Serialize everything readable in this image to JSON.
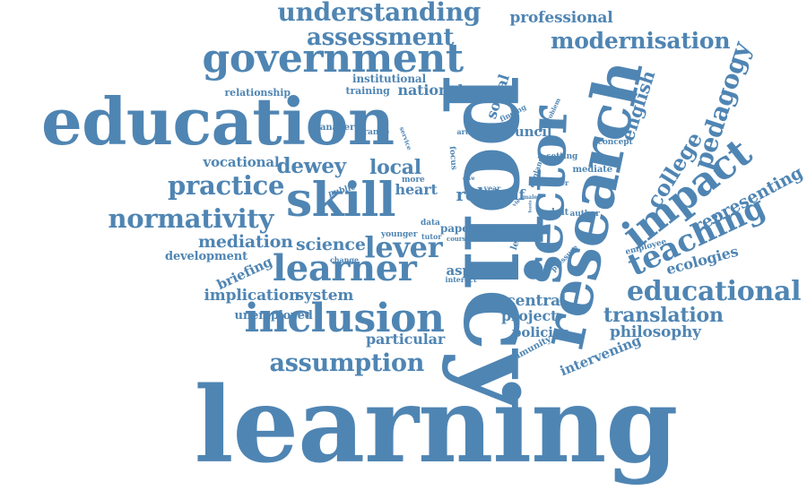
{
  "cloud": {
    "color": "#4f85b3",
    "words": [
      {
        "text": "learning",
        "weight": 100
      },
      {
        "text": "policy",
        "weight": 82
      },
      {
        "text": "education",
        "weight": 68
      },
      {
        "text": "research",
        "weight": 58
      },
      {
        "text": "sector",
        "weight": 48
      },
      {
        "text": "skill",
        "weight": 44
      },
      {
        "text": "inclusion",
        "weight": 40
      },
      {
        "text": "government",
        "weight": 38
      },
      {
        "text": "learner",
        "weight": 34
      },
      {
        "text": "teaching",
        "weight": 32
      },
      {
        "text": "educational",
        "weight": 30
      },
      {
        "text": "impact",
        "weight": 30
      },
      {
        "text": "lever",
        "weight": 28
      },
      {
        "text": "pedagogy",
        "weight": 26
      },
      {
        "text": "understanding",
        "weight": 25
      },
      {
        "text": "assessment",
        "weight": 24
      },
      {
        "text": "modernisation",
        "weight": 24
      },
      {
        "text": "practice",
        "weight": 22
      },
      {
        "text": "normativity",
        "weight": 22
      },
      {
        "text": "dewey",
        "weight": 22
      },
      {
        "text": "assumption",
        "weight": 22
      },
      {
        "text": "college",
        "weight": 20
      },
      {
        "text": "local",
        "weight": 20
      },
      {
        "text": "science",
        "weight": 18
      },
      {
        "text": "mediation",
        "weight": 18
      },
      {
        "text": "translation",
        "weight": 18
      },
      {
        "text": "english",
        "weight": 16
      },
      {
        "text": "representing",
        "weight": 16
      },
      {
        "text": "professional",
        "weight": 16
      },
      {
        "text": "ecologies",
        "weight": 16
      },
      {
        "text": "national",
        "weight": 15
      },
      {
        "text": "project",
        "weight": 14
      },
      {
        "text": "philosophy",
        "weight": 14
      },
      {
        "text": "vocational",
        "weight": 14
      },
      {
        "text": "implication",
        "weight": 14
      },
      {
        "text": "system",
        "weight": 14
      },
      {
        "text": "particular",
        "weight": 14
      },
      {
        "text": "intervening",
        "weight": 14
      },
      {
        "text": "social",
        "weight": 13
      },
      {
        "text": "council",
        "weight": 13
      },
      {
        "text": "central",
        "weight": 13
      },
      {
        "text": "policies",
        "weight": 12
      },
      {
        "text": "role",
        "weight": 12
      },
      {
        "text": "aspect",
        "weight": 12
      },
      {
        "text": "institutional",
        "weight": 12
      },
      {
        "text": "heart",
        "weight": 12
      },
      {
        "text": "briefing",
        "weight": 12
      },
      {
        "text": "unemployed",
        "weight": 11
      },
      {
        "text": "development",
        "weight": 11
      },
      {
        "text": "relationship",
        "weight": 11
      },
      {
        "text": "training",
        "weight": 11
      },
      {
        "text": "half",
        "weight": 11
      },
      {
        "text": "paper",
        "weight": 10
      },
      {
        "text": "community",
        "weight": 10
      },
      {
        "text": "public",
        "weight": 9
      },
      {
        "text": "manager",
        "weight": 9
      },
      {
        "text": "range",
        "weight": 9
      },
      {
        "text": "employee",
        "weight": 9
      },
      {
        "text": "tutor",
        "weight": 8
      },
      {
        "text": "younger",
        "weight": 8
      },
      {
        "text": "level",
        "weight": 8
      },
      {
        "text": "group",
        "weight": 8
      },
      {
        "text": "adult",
        "weight": 8
      },
      {
        "text": "author",
        "weight": 8
      },
      {
        "text": "concept",
        "weight": 8
      },
      {
        "text": "setting",
        "weight": 8
      },
      {
        "text": "mediate",
        "weight": 8
      },
      {
        "text": "pressure",
        "weight": 8
      },
      {
        "text": "data",
        "weight": 7
      },
      {
        "text": "more",
        "weight": 7
      },
      {
        "text": "focus",
        "weight": 7
      },
      {
        "text": "year",
        "weight": 7
      },
      {
        "text": "article",
        "weight": 7
      },
      {
        "text": "finding",
        "weight": 7
      },
      {
        "text": "problem",
        "weight": 7
      },
      {
        "text": "change",
        "weight": 7
      },
      {
        "text": "course",
        "weight": 7
      },
      {
        "text": "interact",
        "weight": 7
      },
      {
        "text": "factor",
        "weight": 7
      },
      {
        "text": "maker",
        "weight": 7
      },
      {
        "text": "england",
        "weight": 7
      },
      {
        "text": "service",
        "weight": 7
      },
      {
        "text": "view",
        "weight": 6
      },
      {
        "text": "basis",
        "weight": 6
      },
      {
        "text": "male",
        "weight": 6
      },
      {
        "text": "give",
        "weight": 6
      }
    ]
  }
}
